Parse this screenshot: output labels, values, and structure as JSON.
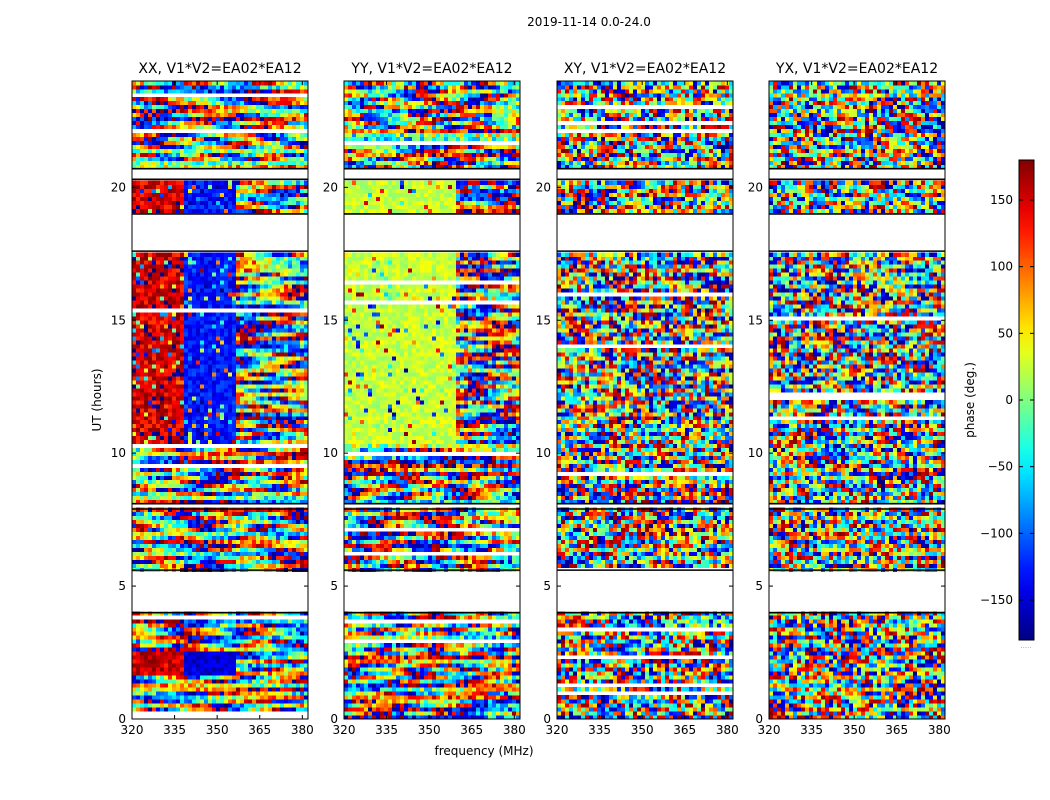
{
  "figure": {
    "suptitle": "2019-11-14 0.0-24.0",
    "xlabel": "frequency (MHz)",
    "ylabel": "UT (hours)",
    "colorbar_label": "phase (deg.)",
    "colorbar_extra": "....."
  },
  "chart_data": {
    "type": "heatmap",
    "colormap": "jet",
    "x_unit": "MHz",
    "y_unit": "hours",
    "xlim": [
      320,
      382
    ],
    "ylim": [
      0,
      24
    ],
    "xticks": [
      320,
      335,
      350,
      365,
      380
    ],
    "yticks": [
      0,
      5,
      10,
      15,
      20
    ],
    "clim": [
      -180,
      180
    ],
    "colorbar_ticks": [
      -150,
      -100,
      -50,
      0,
      50,
      100,
      150
    ],
    "flagged_gaps_hours": [
      [
        4.0,
        5.6
      ],
      [
        7.9,
        8.1
      ],
      [
        17.6,
        19.0
      ],
      [
        20.3,
        20.7
      ]
    ],
    "panels": [
      {
        "title": "XX, V1*V2=EA02*EA12",
        "pattern": "xx"
      },
      {
        "title": "YY, V1*V2=EA02*EA12",
        "pattern": "yy"
      },
      {
        "title": "XY, V1*V2=EA02*EA12",
        "pattern": "noise"
      },
      {
        "title": "YX, V1*V2=EA02*EA12",
        "pattern": "noise"
      }
    ]
  }
}
